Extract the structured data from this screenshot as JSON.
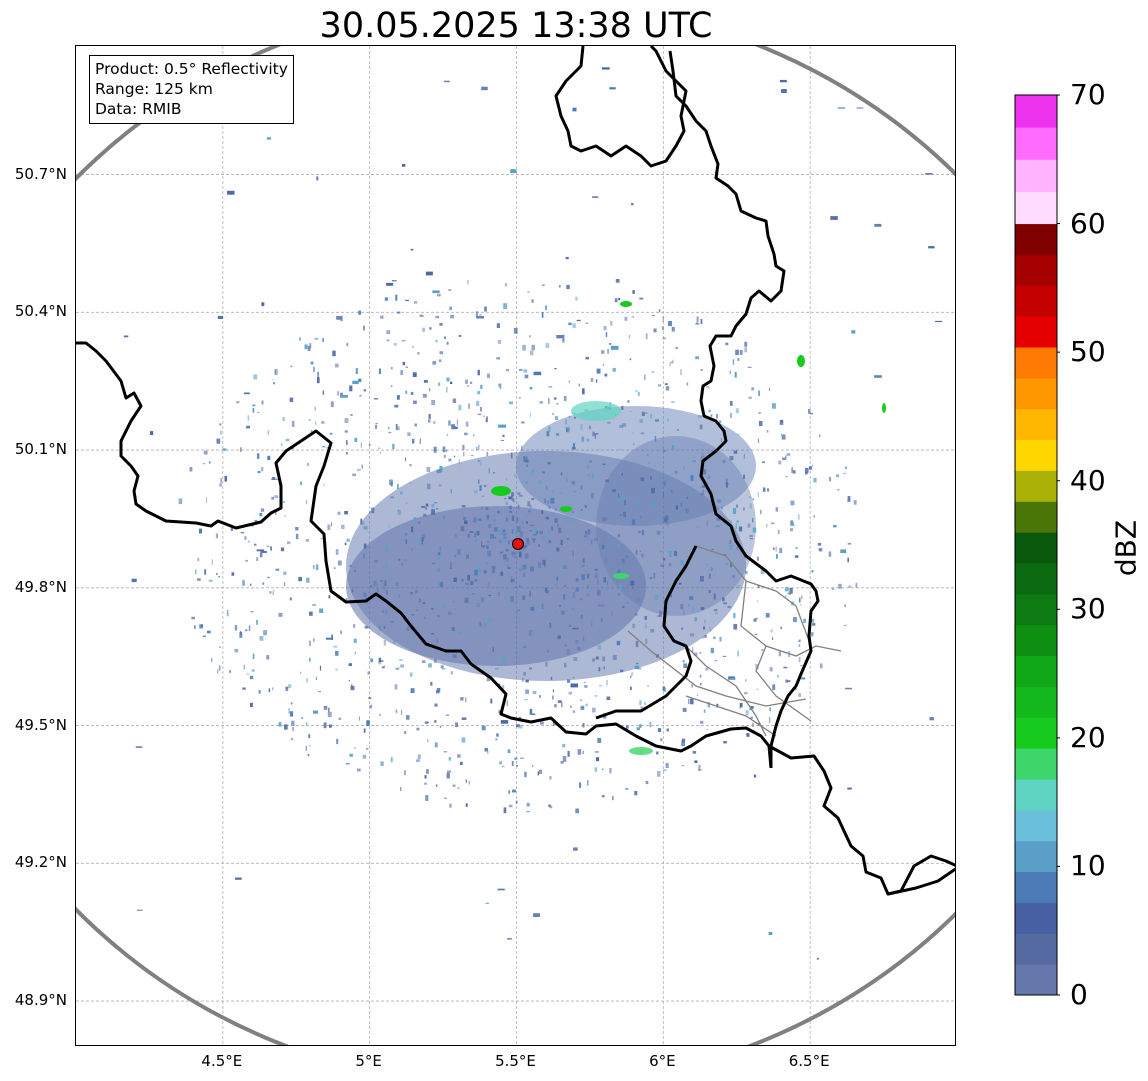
{
  "title": "30.05.2025 13:38 UTC",
  "info": {
    "product": "Product: 0.5° Reflectivity",
    "range": "Range: 125 km",
    "data": "Data: RMIB"
  },
  "map": {
    "lon_range": [
      4.0,
      7.0
    ],
    "lat_range": [
      48.8,
      50.98
    ],
    "radar_site": {
      "lon": 5.505,
      "lat": 49.915,
      "color": "#e81010"
    },
    "range_ring_km": 125,
    "lat_ticks": [
      {
        "value": 48.9,
        "label": "48.9°N"
      },
      {
        "value": 49.2,
        "label": "49.2°N"
      },
      {
        "value": 49.5,
        "label": "49.5°N"
      },
      {
        "value": 49.8,
        "label": "49.8°N"
      },
      {
        "value": 50.1,
        "label": "50.1°N"
      },
      {
        "value": 50.4,
        "label": "50.4°N"
      },
      {
        "value": 50.7,
        "label": "50.7°N"
      }
    ],
    "lon_ticks": [
      {
        "value": 4.5,
        "label": "4.5°E"
      },
      {
        "value": 5.0,
        "label": "5°E"
      },
      {
        "value": 5.5,
        "label": "5.5°E"
      },
      {
        "value": 6.0,
        "label": "6°E"
      },
      {
        "value": 6.5,
        "label": "6.5°E"
      }
    ],
    "colors": {
      "border": "#000000",
      "admin": "#808080",
      "ring": "#808080",
      "grid": "#b0b0b0"
    }
  },
  "colorbar": {
    "label": "dBZ",
    "min": 0,
    "max": 70,
    "ticks": [
      "0",
      "10",
      "20",
      "30",
      "40",
      "50",
      "60",
      "70"
    ],
    "colors": [
      "#6577ab",
      "#556aa1",
      "#4760a3",
      "#4b7ab6",
      "#5a9fc8",
      "#6ac0db",
      "#5fd4c2",
      "#3ed66a",
      "#16cb1d",
      "#12b81c",
      "#11a818",
      "#0e8f12",
      "#0d7a13",
      "#0c6a10",
      "#09580b",
      "#4a7608",
      "#aab005",
      "#ffd700",
      "#ffb700",
      "#ff9800",
      "#ff7a00",
      "#e50000",
      "#c50000",
      "#a50000",
      "#800000",
      "#ffdbff",
      "#ffb3ff",
      "#ff6bff",
      "#ee33ee"
    ]
  }
}
